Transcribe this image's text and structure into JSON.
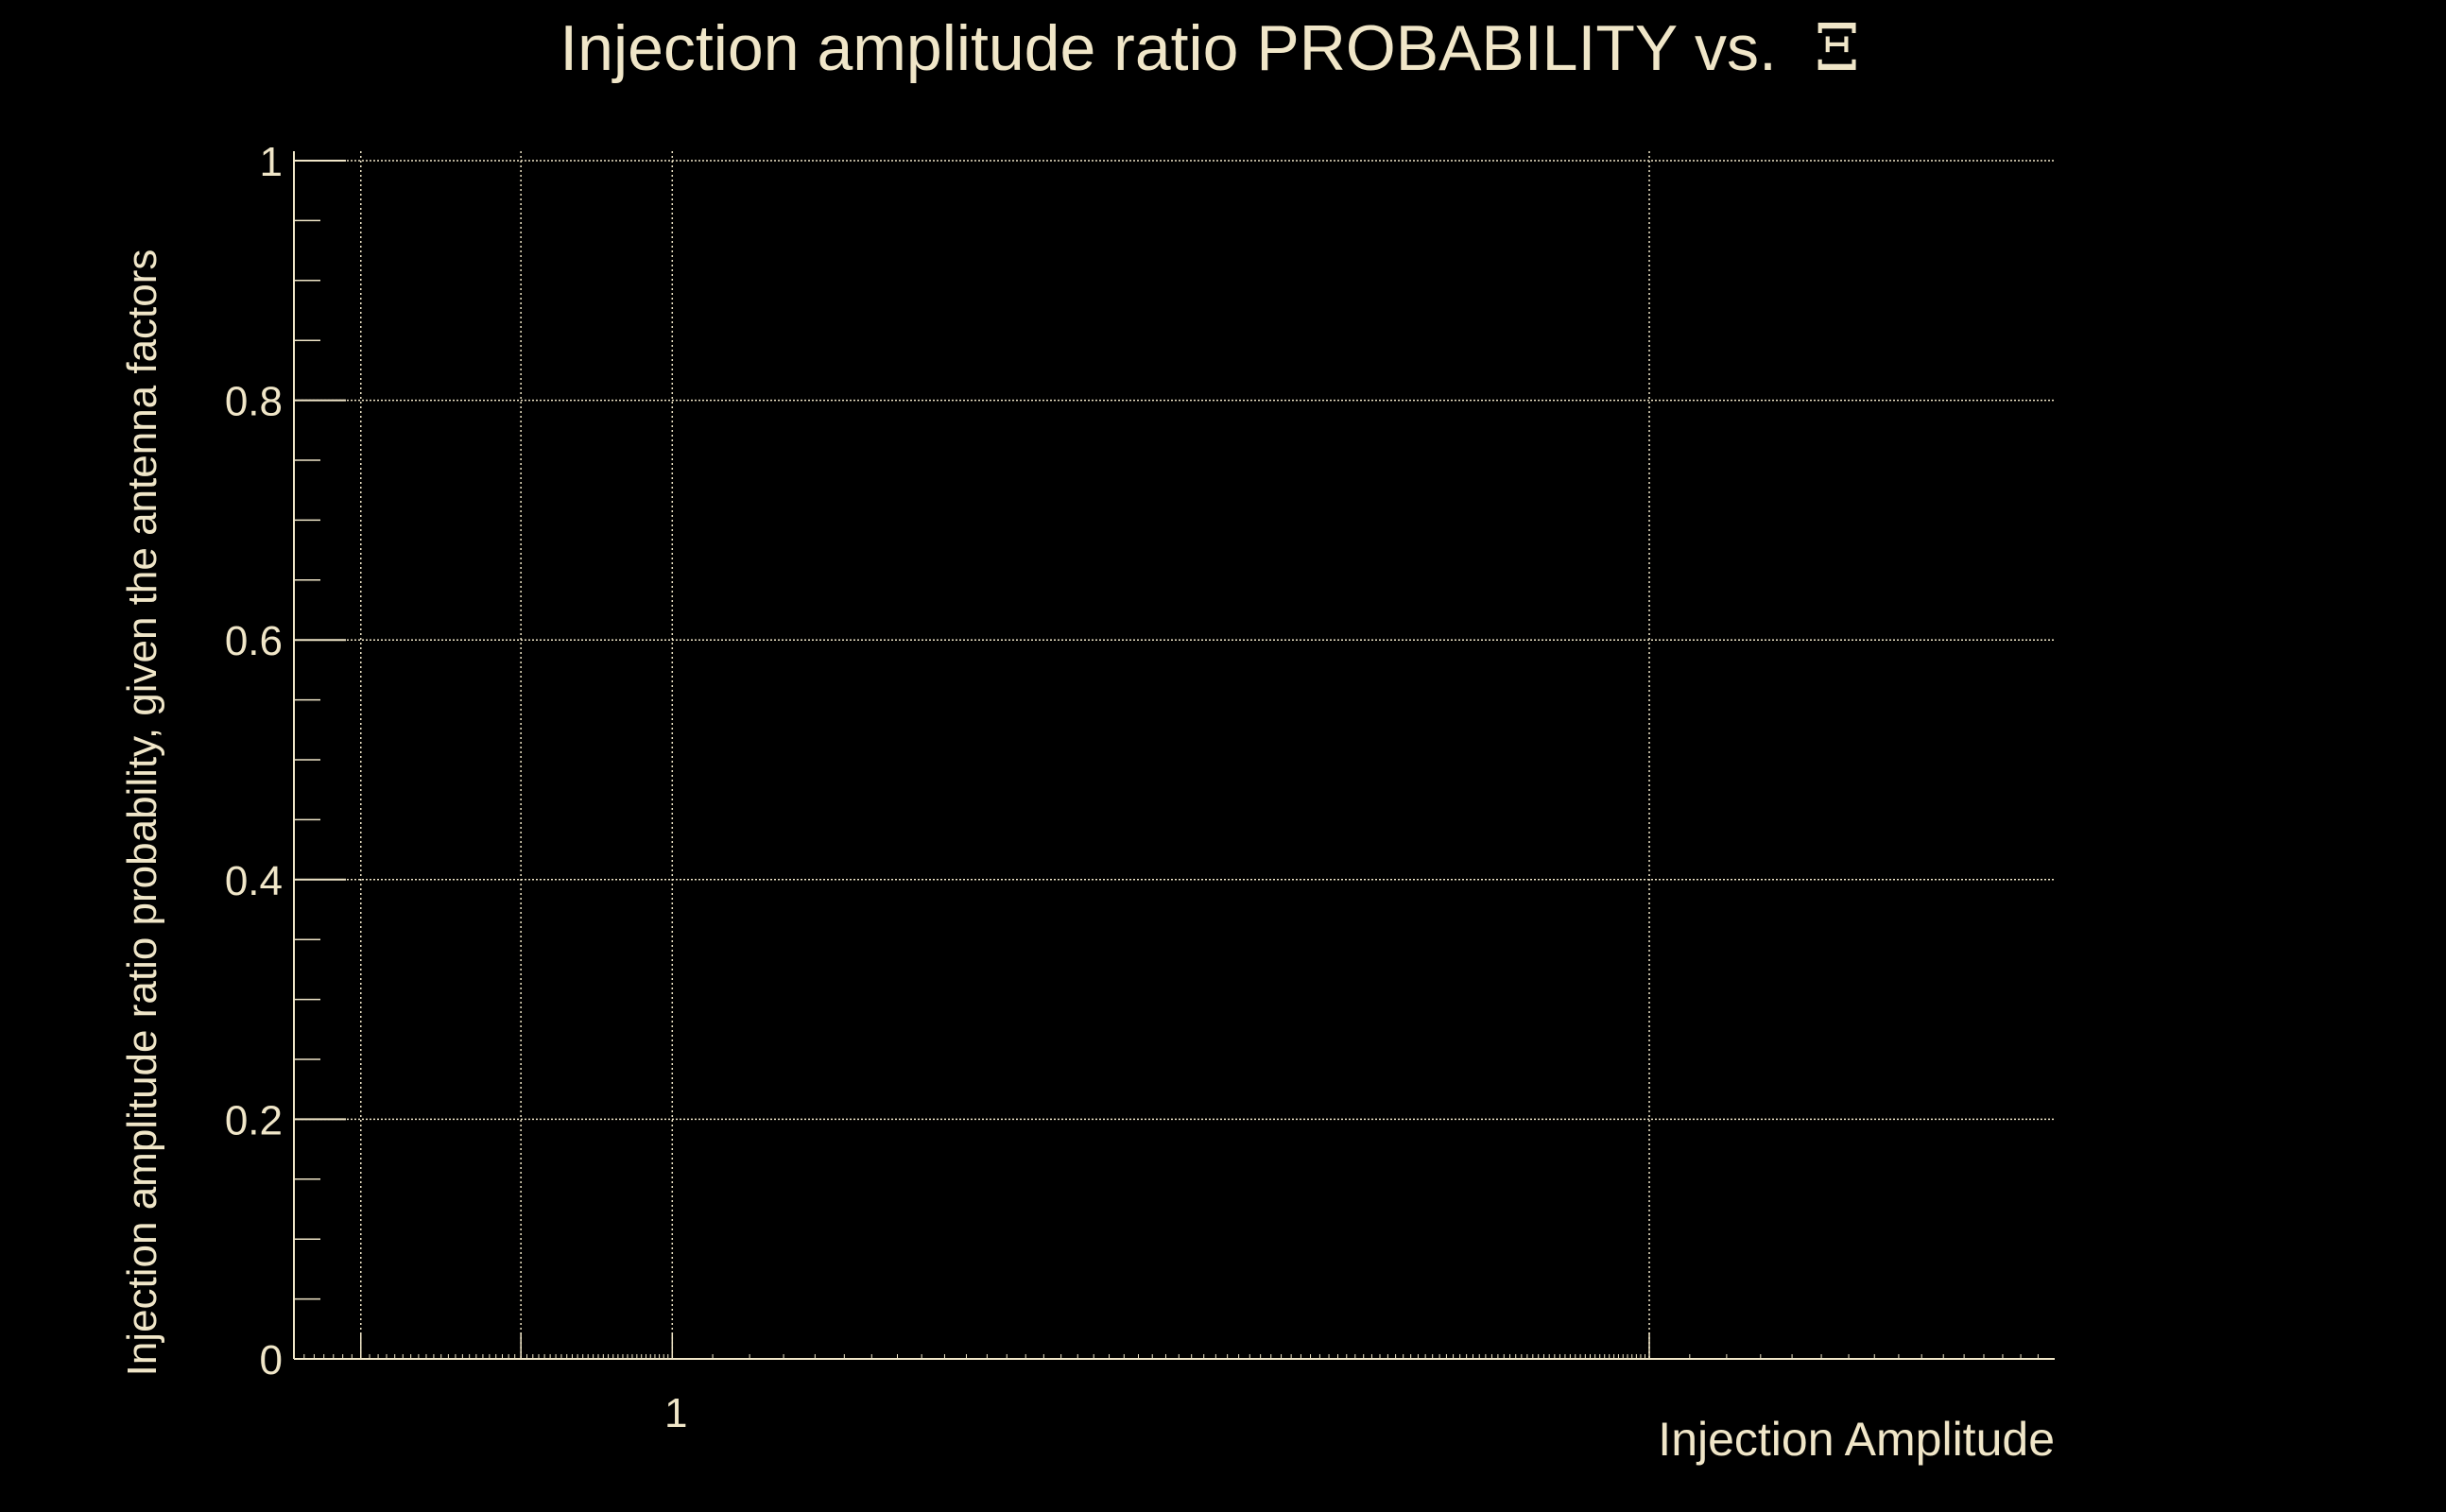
{
  "chart_data": {
    "type": "line",
    "title": "Injection amplitude ratio PROBABILITY vs.",
    "title_symbol": "Ξ",
    "xlabel": "Injection Amplitude",
    "ylabel": "Injection amplitude ratio probability, given the antenna factors",
    "xscale": "log",
    "xlim": [
      0.41,
      26
    ],
    "ylim": [
      0,
      1
    ],
    "x_tick_labels": [
      {
        "value": 1,
        "label": "1"
      }
    ],
    "y_tick_labels": [
      {
        "value": 0,
        "label": "0"
      },
      {
        "value": 0.2,
        "label": "0.2"
      },
      {
        "value": 0.4,
        "label": "0.4"
      },
      {
        "value": 0.6,
        "label": "0.6"
      },
      {
        "value": 0.8,
        "label": "0.8"
      },
      {
        "value": 1,
        "label": "1"
      }
    ],
    "grid_x": [
      0.48,
      0.7,
      1,
      10
    ],
    "y_minor_step": 0.05,
    "grid": true,
    "series": [],
    "colors": {
      "background": "#000000",
      "foreground": "#f0e6c8"
    }
  }
}
